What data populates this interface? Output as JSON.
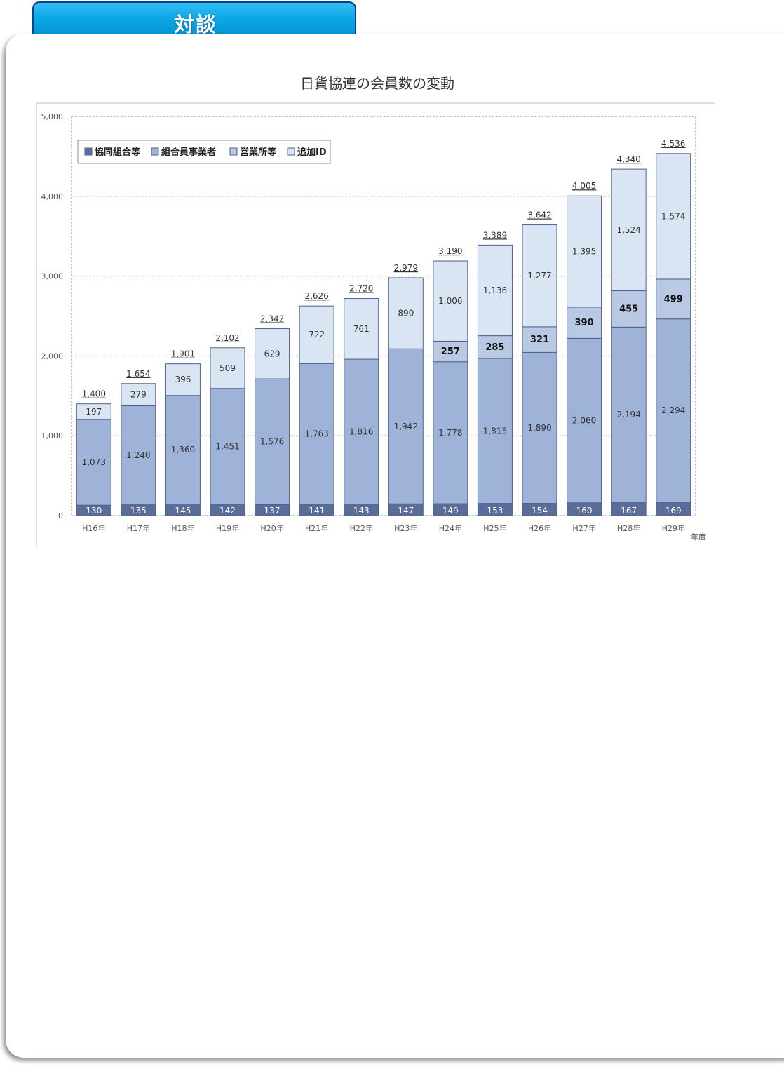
{
  "header": {
    "tab_title": "対談"
  },
  "colors": {
    "kyodo": "#5a6d9a",
    "kumiai": "#9fb3d8",
    "eigyo": "#b9c9e3",
    "tsuika": "#dae5f3",
    "bar_stroke": "#4f628f"
  },
  "chart_data": {
    "type": "bar",
    "stacked": true,
    "title": "日貨協連の会員数の変動",
    "xlabel": "年度",
    "ylabel": "",
    "ylim": [
      0,
      5000
    ],
    "yticks": [
      "0",
      "1,000",
      "2,000",
      "3,000",
      "4,000",
      "5,000"
    ],
    "grid": true,
    "legend_position": "top-left",
    "categories": [
      "H16年",
      "H17年",
      "H18年",
      "H19年",
      "H20年",
      "H21年",
      "H22年",
      "H23年",
      "H24年",
      "H25年",
      "H26年",
      "H27年",
      "H28年",
      "H29年"
    ],
    "series": [
      {
        "key": "kyodo",
        "name": "協同組合等",
        "values": [
          130,
          135,
          145,
          142,
          137,
          141,
          143,
          147,
          149,
          153,
          154,
          160,
          167,
          169
        ],
        "labels": [
          "130",
          "135",
          "145",
          "142",
          "137",
          "141",
          "143",
          "147",
          "149",
          "153",
          "154",
          "160",
          "167",
          "169"
        ]
      },
      {
        "key": "kumiai",
        "name": "組合員事業者",
        "values": [
          1073,
          1240,
          1360,
          1451,
          1576,
          1763,
          1816,
          1942,
          1778,
          1815,
          1890,
          2060,
          2194,
          2294
        ],
        "labels": [
          "1,073",
          "1,240",
          "1,360",
          "1,451",
          "1,576",
          "1,763",
          "1,816",
          "1,942",
          "1,778",
          "1,815",
          "1,890",
          "2,060",
          "2,194",
          "2,294"
        ]
      },
      {
        "key": "eigyo",
        "name": "営業所等",
        "values": [
          0,
          0,
          0,
          0,
          0,
          0,
          0,
          0,
          257,
          285,
          321,
          390,
          455,
          499
        ],
        "labels": [
          "",
          "",
          "",
          "",
          "",
          "",
          "",
          "",
          "257",
          "285",
          "321",
          "390",
          "455",
          "499"
        ]
      },
      {
        "key": "tsuika",
        "name": "追加ID",
        "values": [
          197,
          279,
          396,
          509,
          629,
          722,
          761,
          890,
          1006,
          1136,
          1277,
          1395,
          1524,
          1574
        ],
        "labels": [
          "197",
          "279",
          "396",
          "509",
          "629",
          "722",
          "761",
          "890",
          "1,006",
          "1,136",
          "1,277",
          "1,395",
          "1,524",
          "1,574"
        ]
      }
    ],
    "totals": [
      1400,
      1654,
      1901,
      2102,
      2342,
      2626,
      2720,
      2979,
      3190,
      3389,
      3642,
      4005,
      4340,
      4536
    ],
    "total_labels": [
      "1,400",
      "1,654",
      "1,901",
      "2,102",
      "2,342",
      "2,626",
      "2,720",
      "2,979",
      "3,190",
      "3,389",
      "3,642",
      "4,005",
      "4,340",
      "4,536"
    ]
  }
}
